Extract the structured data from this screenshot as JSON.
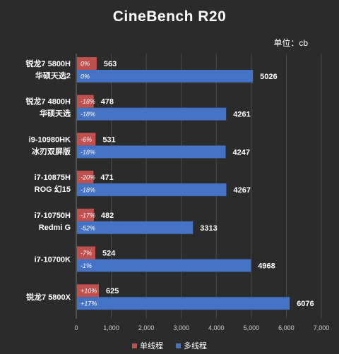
{
  "chart_data": {
    "type": "bar",
    "orientation": "horizontal",
    "title": "CineBench R20",
    "unit_label": "单位：cb",
    "xlim": [
      0,
      7000
    ],
    "xticks": [
      "0",
      "1,000",
      "2,000",
      "3,000",
      "4,000",
      "5,000",
      "6,000",
      "7,000"
    ],
    "grid": true,
    "legend_position": "bottom",
    "categories": [
      {
        "line1": "锐龙7 5800H",
        "line2": "华硕天选2"
      },
      {
        "line1": "锐龙7 4800H",
        "line2": "华硕天选"
      },
      {
        "line1": "i9-10980HK",
        "line2": "冰刃双屏版"
      },
      {
        "line1": "i7-10875H",
        "line2": "ROG 幻15"
      },
      {
        "line1": "i7-10750H",
        "line2": "Redmi G"
      },
      {
        "line1": "i7-10700K",
        "line2": ""
      },
      {
        "line1": "锐龙7 5800X",
        "line2": ""
      }
    ],
    "series": [
      {
        "name": "单线程",
        "color": "#c0504d",
        "values": [
          563,
          478,
          531,
          471,
          482,
          524,
          625
        ],
        "pct_labels": [
          "0%",
          "-18%",
          "-6%",
          "-20%",
          "-17%",
          "-7%",
          "+10%"
        ]
      },
      {
        "name": "多线程",
        "color": "#4472c4",
        "values": [
          5026,
          4261,
          4247,
          4267,
          3313,
          4968,
          6076
        ],
        "pct_labels": [
          "0%",
          "-18%",
          "-18%",
          "-18%",
          "-52%",
          "-1%",
          "+17%"
        ]
      }
    ]
  }
}
